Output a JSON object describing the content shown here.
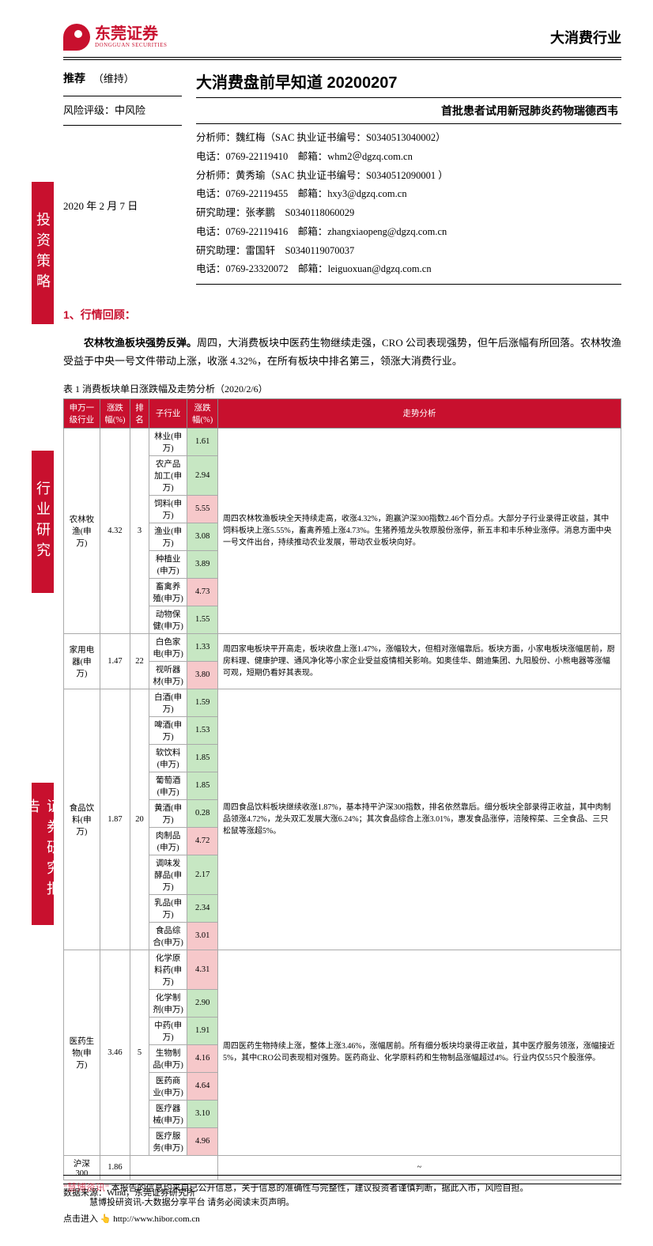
{
  "header": {
    "logo_zh": "东莞证券",
    "logo_en": "DONGGUAN SECURITIES",
    "category": "大消费行业"
  },
  "sidebar": {
    "b1": "投资策略",
    "b2": "行业研究",
    "b3": "证券研究报告"
  },
  "meta": {
    "recommend_label": "推荐",
    "recommend_hold": "（维持）",
    "risk_label": "风险评级：中风险",
    "date": "2020 年 2 月 7 日",
    "title": "大消费盘前早知道 20200207",
    "subtitle": "首批患者试用新冠肺炎药物瑞德西韦"
  },
  "analysts": {
    "a1": "分析师：魏红梅（SAC 执业证书编号：S0340513040002）",
    "a1_line2": "电话：0769-22119410　邮箱：whm2＠dgzq.com.cn",
    "a2": "分析师：黄秀瑜（SAC 执业证书编号：S0340512090001 ）",
    "a2_line2": "电话：0769-22119455　邮箱：hxy3@dgzq.com.cn",
    "a3": "研究助理：张孝鹏　S0340118060029",
    "a3_line2": "电话：0769-22119416　邮箱：zhangxiaopeng@dgzq.com.cn",
    "a4": "研究助理：雷国轩　S0340119070037",
    "a4_line2": "电话：0769-23320072　邮箱：leiguoxuan@dgzq.com.cn"
  },
  "section1": {
    "heading": "1、行情回顾：",
    "lead": "农林牧渔板块强势反弹。",
    "para": "周四，大消费板块中医药生物继续走强，CRO 公司表现强势，但午后涨幅有所回落。农林牧渔受益于中央一号文件带动上涨，收涨 4.32%，在所有板块中排名第三，领涨大消费行业。"
  },
  "table": {
    "caption": "表 1 消费板块单日涨跌幅及走势分析（2020/2/6）",
    "source": "数据来源：Wind，东莞证券研究所",
    "columns": [
      "申万一级行业",
      "涨跌幅(%)",
      "排名",
      "子行业",
      "涨跌幅(%)",
      "走势分析"
    ],
    "groups": [
      {
        "industry": "农林牧渔(申万)",
        "pct": "4.32",
        "rank": "3",
        "subs": [
          {
            "name": "林业(申万)",
            "pct": "1.61",
            "cls": "val-green"
          },
          {
            "name": "农产品加工(申万)",
            "pct": "2.94",
            "cls": "val-green"
          },
          {
            "name": "饲料(申万)",
            "pct": "5.55",
            "cls": "val-pink"
          },
          {
            "name": "渔业(申万)",
            "pct": "3.08",
            "cls": "val-green"
          },
          {
            "name": "种植业(申万)",
            "pct": "3.89",
            "cls": "val-green"
          },
          {
            "name": "畜禽养殖(申万)",
            "pct": "4.73",
            "cls": "val-pink"
          },
          {
            "name": "动物保健(申万)",
            "pct": "1.55",
            "cls": "val-green"
          }
        ],
        "analysis": "周四农林牧渔板块全天持续走高，收涨4.32%，跑赢沪深300指数2.46个百分点。大部分子行业录得正收益，其中饲料板块上涨5.55%，畜禽养殖上涨4.73%。生猪养殖龙头牧原股份涨停，新五丰和丰乐种业涨停。消息方面中央一号文件出台，持续推动农业发展，带动农业板块向好。"
      },
      {
        "industry": "家用电器(申万)",
        "pct": "1.47",
        "rank": "22",
        "subs": [
          {
            "name": "白色家电(申万)",
            "pct": "1.33",
            "cls": "val-green"
          },
          {
            "name": "视听器材(申万)",
            "pct": "3.80",
            "cls": "val-pink"
          }
        ],
        "analysis": "周四家电板块平开高走，板块收盘上涨1.47%，涨幅较大，但相对涨幅靠后。板块方面，小家电板块涨幅居前，厨房料理、健康护理、通风净化等小家企业受益疫情相关影响。如奥佳华、朗迪集团、九阳股份、小熊电器等涨幅可观，短期仍看好其表现。"
      },
      {
        "industry": "食品饮料(申万)",
        "pct": "1.87",
        "rank": "20",
        "subs": [
          {
            "name": "白酒(申万)",
            "pct": "1.59",
            "cls": "val-green"
          },
          {
            "name": "啤酒(申万)",
            "pct": "1.53",
            "cls": "val-green"
          },
          {
            "name": "软饮料(申万)",
            "pct": "1.85",
            "cls": "val-green"
          },
          {
            "name": "葡萄酒(申万)",
            "pct": "1.85",
            "cls": "val-green"
          },
          {
            "name": "黄酒(申万)",
            "pct": "0.28",
            "cls": "val-green"
          },
          {
            "name": "肉制品(申万)",
            "pct": "4.72",
            "cls": "val-pink"
          },
          {
            "name": "调味发酵品(申万)",
            "pct": "2.17",
            "cls": "val-green"
          },
          {
            "name": "乳品(申万)",
            "pct": "2.34",
            "cls": "val-green"
          },
          {
            "name": "食品综合(申万)",
            "pct": "3.01",
            "cls": "val-pink"
          }
        ],
        "analysis": "周四食品饮料板块继续收涨1.87%，基本持平沪深300指数，排名依然靠后。细分板块全部录得正收益，其中肉制品领涨4.72%，龙头双汇发展大涨6.24%；其次食品综合上涨3.01%，惠发食品涨停，涪陵榨菜、三全食品、三只松鼠等涨超5%。"
      },
      {
        "industry": "医药生物(申万)",
        "pct": "3.46",
        "rank": "5",
        "subs": [
          {
            "name": "化学原料药(申万)",
            "pct": "4.31",
            "cls": "val-pink"
          },
          {
            "name": "化学制剂(申万)",
            "pct": "2.90",
            "cls": "val-green"
          },
          {
            "name": "中药(申万)",
            "pct": "1.91",
            "cls": "val-green"
          },
          {
            "name": "生物制品(申万)",
            "pct": "4.16",
            "cls": "val-pink"
          },
          {
            "name": "医药商业(申万)",
            "pct": "4.64",
            "cls": "val-pink"
          },
          {
            "name": "医疗器械(申万)",
            "pct": "3.10",
            "cls": "val-green"
          },
          {
            "name": "医疗服务(申万)",
            "pct": "4.96",
            "cls": "val-pink"
          }
        ],
        "analysis": "周四医药生物持续上涨，整体上涨3.46%，涨幅居前。所有细分板块均录得正收益，其中医疗服务领涨，涨幅接近5%，其中CRO公司表现相对强势。医药商业、化学原料药和生物制品涨幅超过4%。行业内仅55只个股涨停。"
      }
    ],
    "benchmark": {
      "name": "沪深300",
      "pct": "1.86",
      "tilde": "~"
    }
  },
  "footer": {
    "watermark": "\"慧博资讯\"",
    "wm_sub": "慧博投研资讯-大数据分享平台",
    "disclaimer": "本报告的信息均来自已公开信息，关于信息的准确性与完整性，建议投资者谨慎判断，据此入市，风险自担。",
    "disclaimer2": "请务必阅读末页声明。",
    "link_label": "点击进入",
    "link_url": "http://www.hibor.com.cn"
  },
  "colors": {
    "brand_red": "#c8102e",
    "cell_green": "#c7e7c3",
    "cell_pink": "#f6c8ca"
  }
}
